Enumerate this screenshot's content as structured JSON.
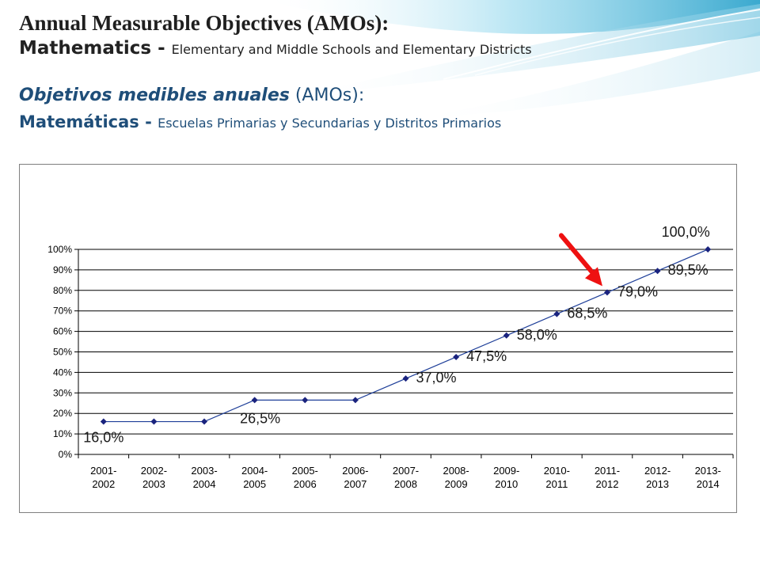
{
  "header": {
    "title_line1": "Annual Measurable Objectives (AMOs):",
    "title_line2_bold": "Mathematics - ",
    "title_line2_rest": "Elementary and Middle Schools and Elementary Districts",
    "title_es_italic": "Objetivos medibles anuales",
    "title_es_rest": " (AMOs):",
    "subtitle_es_bold": "Matemáticas - ",
    "subtitle_es_rest": "Escuelas Primarias y Secundarias y Distritos Primarios"
  },
  "colors": {
    "line": "#1f3f99",
    "marker": "#1a237e",
    "arrow": "#ee1111",
    "grid": "#000000",
    "swoosh": "#4fb8d8"
  },
  "chart_data": {
    "type": "line",
    "categories": [
      [
        "2001-",
        "2002"
      ],
      [
        "2002-",
        "2003"
      ],
      [
        "2003-",
        "2004"
      ],
      [
        "2004-",
        "2005"
      ],
      [
        "2005-",
        "2006"
      ],
      [
        "2006-",
        "2007"
      ],
      [
        "2007-",
        "2008"
      ],
      [
        "2008-",
        "2009"
      ],
      [
        "2009-",
        "2010"
      ],
      [
        "2010-",
        "2011"
      ],
      [
        "2011-",
        "2012"
      ],
      [
        "2012-",
        "2013"
      ],
      [
        "2013-",
        "2014"
      ]
    ],
    "values": [
      16.0,
      16.0,
      16.0,
      26.5,
      26.5,
      26.5,
      37.0,
      47.5,
      58.0,
      68.5,
      79.0,
      89.5,
      100.0
    ],
    "data_labels": [
      {
        "index": 0,
        "text": "16,0%"
      },
      {
        "index": 3,
        "text": "26,5%"
      },
      {
        "index": 6,
        "text": "37,0%"
      },
      {
        "index": 7,
        "text": "47,5%"
      },
      {
        "index": 8,
        "text": "58,0%"
      },
      {
        "index": 9,
        "text": "68,5%"
      },
      {
        "index": 10,
        "text": "79,0%"
      },
      {
        "index": 11,
        "text": "89,5%"
      },
      {
        "index": 12,
        "text": "100,0%"
      }
    ],
    "y_ticks": [
      "0%",
      "10%",
      "20%",
      "30%",
      "40%",
      "50%",
      "60%",
      "70%",
      "80%",
      "90%",
      "100%"
    ],
    "ylim": [
      0,
      100
    ],
    "grid": true,
    "legend": "none",
    "highlight_index": 10
  }
}
